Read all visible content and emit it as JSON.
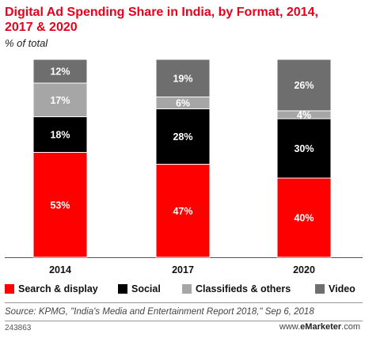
{
  "header": {
    "title": "Digital Ad Spending Share in India, by Format, 2014, 2017 & 2020",
    "subtitle": "% of total"
  },
  "colors": {
    "search_display": "#ff0000",
    "social": "#000000",
    "classifieds": "#a6a6a6",
    "video": "#6e6e6e",
    "title": "#e8001c"
  },
  "chart_data": {
    "type": "bar",
    "stacked": true,
    "title": "Digital Ad Spending Share in India, by Format, 2014, 2017 & 2020",
    "subtitle": "% of total",
    "categories": [
      "2014",
      "2017",
      "2020"
    ],
    "series": [
      {
        "name": "Search & display",
        "values": [
          53,
          47,
          40
        ],
        "labels": [
          "53%",
          "47%",
          "40%"
        ]
      },
      {
        "name": "Social",
        "values": [
          18,
          28,
          30
        ],
        "labels": [
          "18%",
          "28%",
          "30%"
        ]
      },
      {
        "name": "Classifieds & others",
        "values": [
          17,
          6,
          4
        ],
        "labels": [
          "17%",
          "6%",
          "4%"
        ]
      },
      {
        "name": "Video",
        "values": [
          12,
          19,
          26
        ],
        "labels": [
          "12%",
          "19%",
          "26%"
        ]
      }
    ],
    "ylim": [
      0,
      100
    ],
    "grid": false,
    "legend_position": "bottom"
  },
  "legend": {
    "items": [
      "Search & display",
      "Social",
      "Classifieds & others",
      "Video"
    ]
  },
  "footer": {
    "source": "Source: KPMG, \"India's Media and Entertainment Report 2018,\" Sep 6, 2018",
    "chart_id": "243863",
    "brand_prefix": "www.",
    "brand_name": "eMarketer",
    "brand_suffix": ".com"
  }
}
